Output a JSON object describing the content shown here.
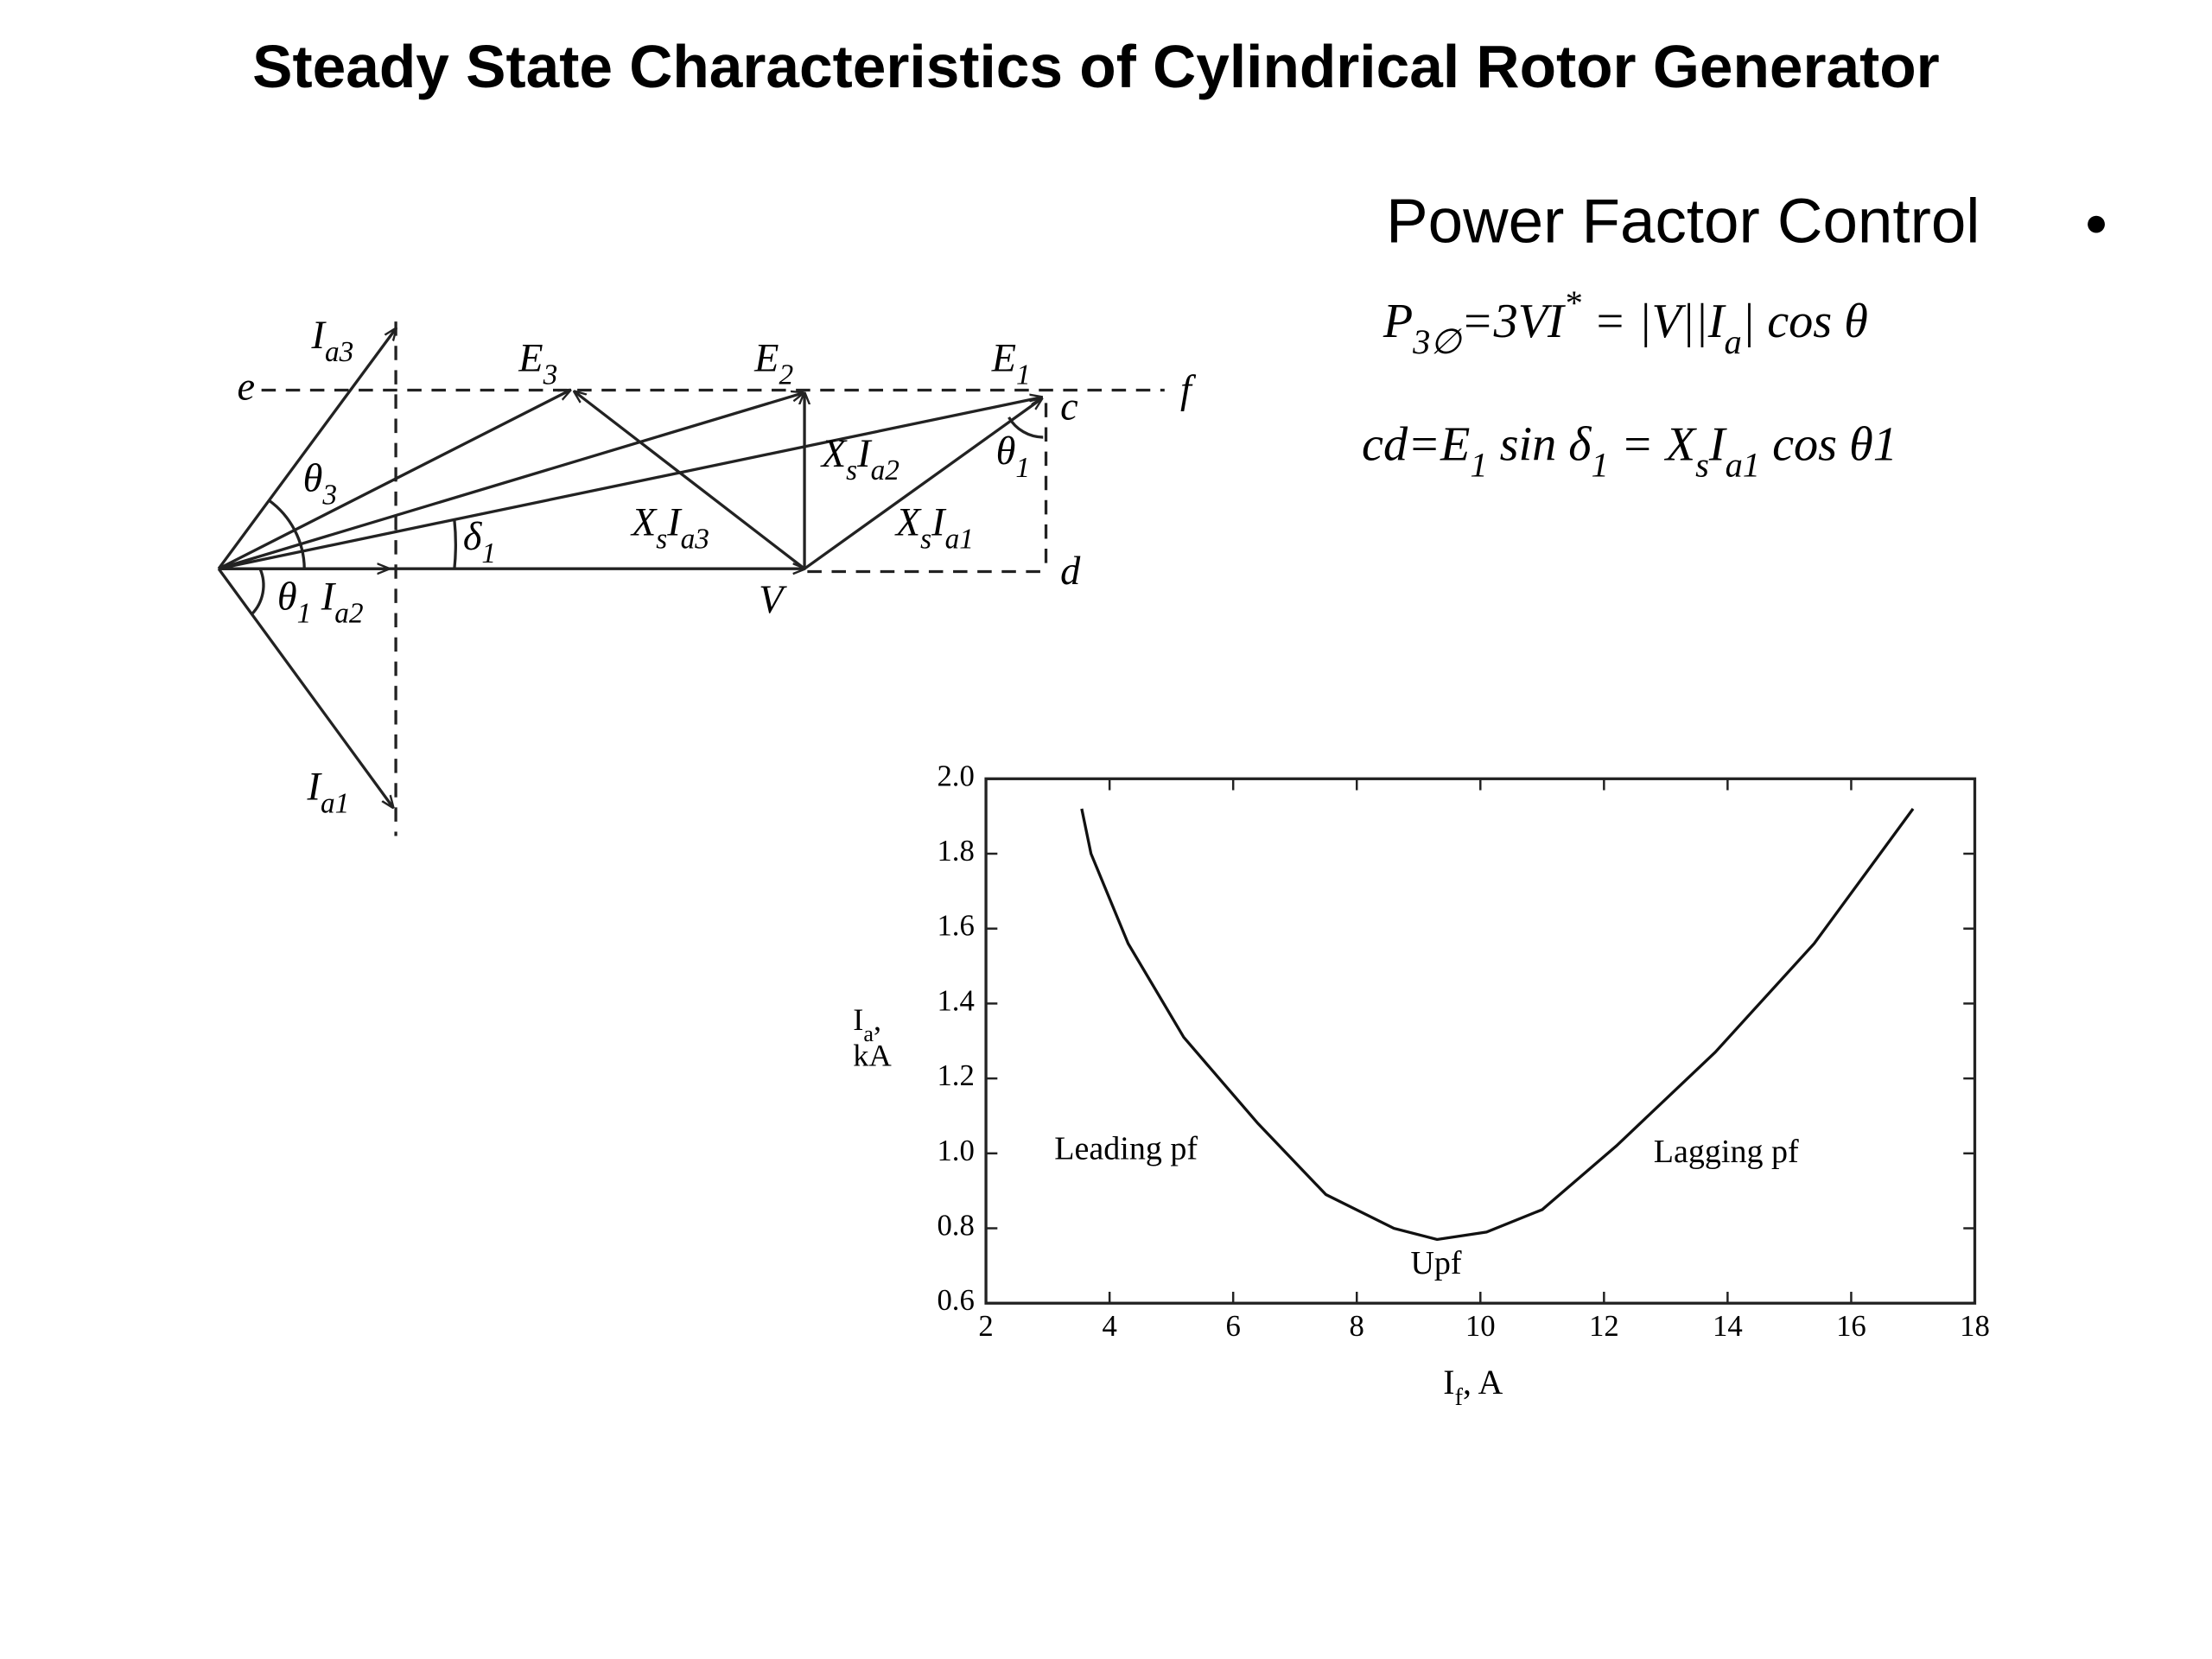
{
  "title": "Steady State Characteristics of Cylindrical Rotor Generator",
  "bullet": "Power Factor Control",
  "equations": [
    [
      {
        "text": "P",
        "sub": "3∅"
      },
      {
        "text": "=3VI",
        "sup": "*"
      },
      {
        "text": "  = |V||I",
        "sub": "a"
      },
      {
        "text": "| cos θ"
      }
    ],
    [
      {
        "text": "cd=E",
        "sub": "1"
      },
      {
        "text": " sin δ",
        "sub": "1"
      },
      {
        "text": " = X",
        "sub": "s"
      },
      {
        "text": "I",
        "sub": "a1"
      },
      {
        "text": " cos θ1"
      }
    ]
  ],
  "diagram": {
    "labels": [
      [
        {
          "text": "I",
          "sub": "a3"
        }
      ],
      [
        {
          "text": "E",
          "sub": "3"
        }
      ],
      [
        {
          "text": "E",
          "sub": "2"
        }
      ],
      [
        {
          "text": "E",
          "sub": "1"
        }
      ],
      [
        {
          "text": "e"
        }
      ],
      [
        {
          "text": "f"
        }
      ],
      [
        {
          "text": "c"
        }
      ],
      [
        {
          "text": "d"
        }
      ],
      [
        {
          "text": "θ",
          "sub": "3"
        }
      ],
      [
        {
          "text": "δ",
          "sub": "1"
        }
      ],
      [
        {
          "text": "X",
          "sub": "s"
        },
        {
          "text": "I",
          "sub": "a2"
        }
      ],
      [
        {
          "text": "θ",
          "sub": "1"
        }
      ],
      [
        {
          "text": "X",
          "sub": "s"
        },
        {
          "text": "I",
          "sub": "a3"
        }
      ],
      [
        {
          "text": "X",
          "sub": "s"
        },
        {
          "text": "I",
          "sub": "a1"
        }
      ],
      [
        {
          "text": "V"
        }
      ],
      [
        {
          "text": "θ",
          "sub": "1"
        },
        {
          "text": " I",
          "sub": "a2"
        }
      ],
      [
        {
          "text": "I",
          "sub": "a1"
        }
      ]
    ]
  },
  "chart_data": {
    "type": "line",
    "x": [
      3.55,
      3.7,
      4.3,
      5.2,
      6.4,
      7.5,
      8.6,
      9.3,
      10.1,
      11,
      12.2,
      13.8,
      15.4,
      17
    ],
    "values": [
      1.92,
      1.8,
      1.56,
      1.31,
      1.08,
      0.89,
      0.8,
      0.77,
      0.79,
      0.85,
      1.02,
      1.27,
      1.56,
      1.92
    ],
    "color": "#111111",
    "xlim": [
      2,
      18
    ],
    "ylim": [
      0.6,
      2.0
    ],
    "xticks": [
      2,
      4,
      6,
      8,
      10,
      12,
      14,
      16,
      18
    ],
    "yticks": [
      0.6,
      0.8,
      {
        "value": 1,
        "label": "1.0"
      },
      1.2,
      1.4,
      1.6,
      1.8,
      {
        "value": 2,
        "label": "2.0"
      }
    ],
    "x_label": [
      {
        "text": "I",
        "sub": "f"
      },
      {
        "text": ", A"
      }
    ],
    "y_label": [
      [
        {
          "text": "I",
          "sub": "a"
        },
        {
          "text": ","
        }
      ],
      [
        {
          "text": "kA"
        }
      ]
    ],
    "annotations": [
      "Leading pf",
      "Lagging pf",
      "Upf"
    ]
  }
}
